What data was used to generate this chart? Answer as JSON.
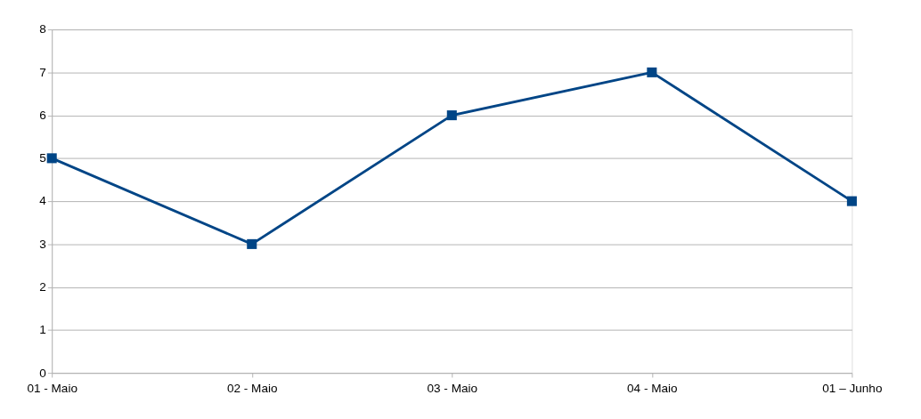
{
  "chart_data": {
    "type": "line",
    "categories": [
      "01 - Maio",
      "02 - Maio",
      "03 - Maio",
      "04 - Maio",
      "01 – Junho"
    ],
    "series": [
      {
        "color": "#004586",
        "values": [
          5,
          3,
          6,
          7,
          4
        ]
      }
    ],
    "ylim": [
      0,
      8
    ],
    "yticks": [
      0,
      1,
      2,
      3,
      4,
      5,
      6,
      7,
      8
    ],
    "grid": "y",
    "marker": "square",
    "line_style": "solid"
  }
}
